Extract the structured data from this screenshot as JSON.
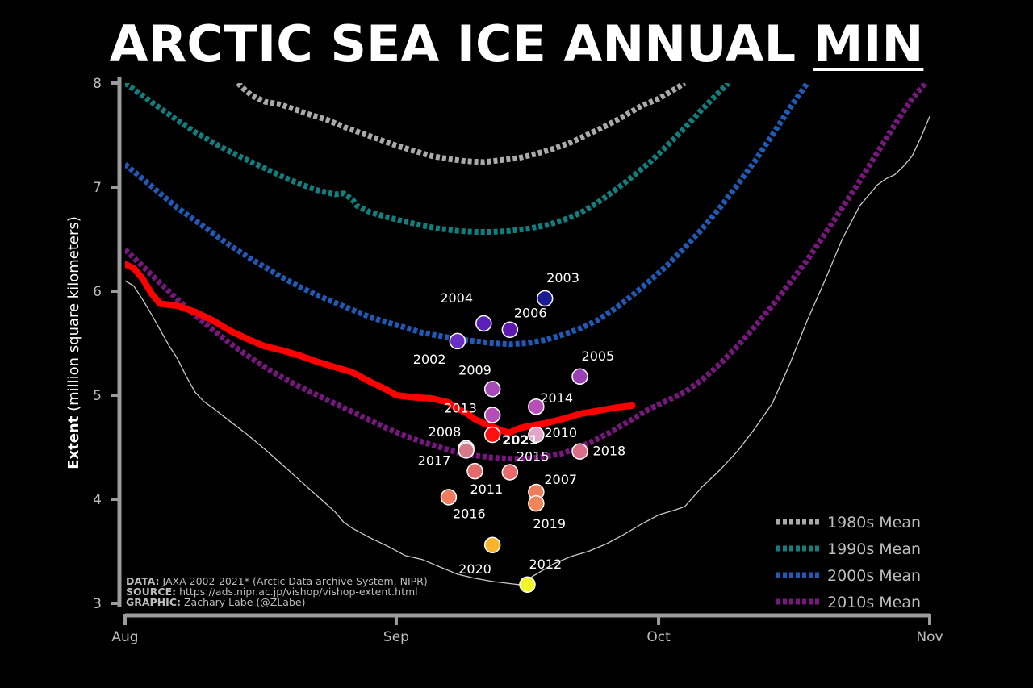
{
  "title": {
    "main": "ARCTIC SEA ICE ANNUAL ",
    "emph": "MIN"
  },
  "chart_data": {
    "type": "line",
    "title": "ARCTIC SEA ICE ANNUAL MIN",
    "ylabel_bold": "Extent",
    "ylabel_rest": " (million square kilometers)",
    "xlabel": "",
    "ylim": [
      3,
      8
    ],
    "xlim": [
      0,
      92
    ],
    "yticks": [
      3,
      4,
      5,
      6,
      7,
      8
    ],
    "xticks": [
      {
        "day": 0,
        "label": "Aug"
      },
      {
        "day": 31,
        "label": "Sep"
      },
      {
        "day": 61,
        "label": "Oct"
      },
      {
        "day": 92,
        "label": "Nov"
      }
    ],
    "legend_position": "bottom-right",
    "grid": false,
    "series": [
      {
        "name": "1980s Mean",
        "color": "#a9a9a9",
        "style": "dashed",
        "points": [
          [
            12.9,
            8.0
          ],
          [
            13.5,
            7.95
          ],
          [
            14.5,
            7.88
          ],
          [
            16,
            7.82
          ],
          [
            17.5,
            7.8
          ],
          [
            19,
            7.76
          ],
          [
            21,
            7.7
          ],
          [
            23,
            7.65
          ],
          [
            25,
            7.58
          ],
          [
            27,
            7.52
          ],
          [
            29,
            7.46
          ],
          [
            31,
            7.4
          ],
          [
            33,
            7.35
          ],
          [
            35,
            7.3
          ],
          [
            37,
            7.27
          ],
          [
            39,
            7.25
          ],
          [
            41,
            7.24
          ],
          [
            43,
            7.26
          ],
          [
            45,
            7.28
          ],
          [
            47,
            7.32
          ],
          [
            49,
            7.37
          ],
          [
            51,
            7.43
          ],
          [
            53,
            7.51
          ],
          [
            55,
            7.59
          ],
          [
            57,
            7.68
          ],
          [
            59,
            7.78
          ],
          [
            61,
            7.85
          ],
          [
            63,
            7.95
          ],
          [
            64,
            8.0
          ]
        ]
      },
      {
        "name": "1990s Mean",
        "color": "#0f7f7f",
        "style": "dashed",
        "points": [
          [
            0,
            8.0
          ],
          [
            2,
            7.88
          ],
          [
            4,
            7.76
          ],
          [
            6,
            7.64
          ],
          [
            8,
            7.53
          ],
          [
            10,
            7.43
          ],
          [
            12,
            7.34
          ],
          [
            14,
            7.26
          ],
          [
            16,
            7.18
          ],
          [
            18,
            7.1
          ],
          [
            20,
            7.03
          ],
          [
            22,
            6.97
          ],
          [
            24,
            6.93
          ],
          [
            25,
            6.94
          ],
          [
            26,
            6.88
          ],
          [
            26.5,
            6.82
          ],
          [
            28,
            6.76
          ],
          [
            30,
            6.71
          ],
          [
            32,
            6.67
          ],
          [
            34,
            6.63
          ],
          [
            36,
            6.6
          ],
          [
            38,
            6.58
          ],
          [
            40,
            6.57
          ],
          [
            42,
            6.57
          ],
          [
            44,
            6.58
          ],
          [
            46,
            6.6
          ],
          [
            48,
            6.63
          ],
          [
            50,
            6.68
          ],
          [
            52,
            6.75
          ],
          [
            54,
            6.85
          ],
          [
            56,
            6.97
          ],
          [
            58,
            7.1
          ],
          [
            60,
            7.24
          ],
          [
            62,
            7.4
          ],
          [
            64,
            7.57
          ],
          [
            66,
            7.75
          ],
          [
            68,
            7.92
          ],
          [
            69,
            8.0
          ]
        ]
      },
      {
        "name": "2000s Mean",
        "color": "#1e5bb8",
        "style": "dashed",
        "points": [
          [
            0,
            7.22
          ],
          [
            2,
            7.08
          ],
          [
            4,
            6.94
          ],
          [
            6,
            6.8
          ],
          [
            8,
            6.68
          ],
          [
            10,
            6.56
          ],
          [
            12,
            6.44
          ],
          [
            14,
            6.33
          ],
          [
            16,
            6.23
          ],
          [
            18,
            6.13
          ],
          [
            20,
            6.04
          ],
          [
            22,
            5.96
          ],
          [
            24,
            5.89
          ],
          [
            26,
            5.82
          ],
          [
            28,
            5.75
          ],
          [
            30,
            5.7
          ],
          [
            32,
            5.65
          ],
          [
            34,
            5.6
          ],
          [
            36,
            5.57
          ],
          [
            38,
            5.54
          ],
          [
            40,
            5.52
          ],
          [
            42,
            5.5
          ],
          [
            44,
            5.49
          ],
          [
            46,
            5.5
          ],
          [
            48,
            5.53
          ],
          [
            50,
            5.58
          ],
          [
            52,
            5.64
          ],
          [
            54,
            5.72
          ],
          [
            56,
            5.83
          ],
          [
            58,
            5.96
          ],
          [
            60,
            6.1
          ],
          [
            62,
            6.25
          ],
          [
            64,
            6.42
          ],
          [
            66,
            6.6
          ],
          [
            68,
            6.8
          ],
          [
            70,
            7.02
          ],
          [
            72,
            7.25
          ],
          [
            74,
            7.5
          ],
          [
            76,
            7.76
          ],
          [
            78,
            8.0
          ]
        ]
      },
      {
        "name": "2010s Mean",
        "color": "#7a1680",
        "style": "dashed",
        "points": [
          [
            0,
            6.4
          ],
          [
            2,
            6.24
          ],
          [
            4,
            6.08
          ],
          [
            6,
            5.92
          ],
          [
            8,
            5.77
          ],
          [
            10,
            5.63
          ],
          [
            12,
            5.5
          ],
          [
            14,
            5.38
          ],
          [
            16,
            5.27
          ],
          [
            18,
            5.17
          ],
          [
            20,
            5.08
          ],
          [
            22,
            5.0
          ],
          [
            24,
            4.92
          ],
          [
            26,
            4.84
          ],
          [
            28,
            4.76
          ],
          [
            30,
            4.68
          ],
          [
            32,
            4.61
          ],
          [
            34,
            4.55
          ],
          [
            36,
            4.5
          ],
          [
            38,
            4.45
          ],
          [
            40,
            4.42
          ],
          [
            42,
            4.4
          ],
          [
            44,
            4.39
          ],
          [
            46,
            4.39
          ],
          [
            48,
            4.41
          ],
          [
            50,
            4.44
          ],
          [
            52,
            4.5
          ],
          [
            54,
            4.58
          ],
          [
            56,
            4.67
          ],
          [
            58,
            4.77
          ],
          [
            60,
            4.87
          ],
          [
            62,
            4.95
          ],
          [
            64,
            5.03
          ],
          [
            66,
            5.15
          ],
          [
            68,
            5.3
          ],
          [
            70,
            5.47
          ],
          [
            72,
            5.66
          ],
          [
            74,
            5.86
          ],
          [
            76,
            6.08
          ],
          [
            78,
            6.3
          ],
          [
            80,
            6.55
          ],
          [
            82,
            6.8
          ],
          [
            84,
            7.06
          ],
          [
            86,
            7.33
          ],
          [
            88,
            7.6
          ],
          [
            90,
            7.85
          ],
          [
            91.5,
            8.0
          ]
        ]
      },
      {
        "name": "2012",
        "color": "#c8c8c8",
        "style": "thin",
        "points": [
          [
            0,
            6.1
          ],
          [
            1,
            6.05
          ],
          [
            2,
            5.92
          ],
          [
            3,
            5.78
          ],
          [
            4,
            5.63
          ],
          [
            5,
            5.48
          ],
          [
            6,
            5.35
          ],
          [
            7,
            5.18
          ],
          [
            8,
            5.03
          ],
          [
            9,
            4.94
          ],
          [
            10,
            4.88
          ],
          [
            12,
            4.75
          ],
          [
            14,
            4.62
          ],
          [
            16,
            4.48
          ],
          [
            18,
            4.33
          ],
          [
            20,
            4.18
          ],
          [
            22,
            4.03
          ],
          [
            24,
            3.88
          ],
          [
            25,
            3.78
          ],
          [
            26,
            3.72
          ],
          [
            28,
            3.63
          ],
          [
            30,
            3.55
          ],
          [
            32,
            3.46
          ],
          [
            34,
            3.42
          ],
          [
            36,
            3.35
          ],
          [
            38,
            3.28
          ],
          [
            40,
            3.24
          ],
          [
            42,
            3.21
          ],
          [
            44,
            3.19
          ],
          [
            45,
            3.18
          ],
          [
            47,
            3.28
          ],
          [
            49,
            3.38
          ],
          [
            51,
            3.45
          ],
          [
            53,
            3.5
          ],
          [
            55,
            3.57
          ],
          [
            57,
            3.66
          ],
          [
            59,
            3.76
          ],
          [
            61,
            3.85
          ],
          [
            63,
            3.9
          ],
          [
            64,
            3.93
          ],
          [
            66,
            4.12
          ],
          [
            68,
            4.28
          ],
          [
            70,
            4.46
          ],
          [
            72,
            4.68
          ],
          [
            74,
            4.92
          ],
          [
            76,
            5.3
          ],
          [
            78,
            5.72
          ],
          [
            80,
            6.1
          ],
          [
            82,
            6.5
          ],
          [
            84,
            6.82
          ],
          [
            86,
            7.02
          ],
          [
            87,
            7.08
          ],
          [
            88,
            7.12
          ],
          [
            89,
            7.2
          ],
          [
            90,
            7.3
          ],
          [
            91,
            7.48
          ],
          [
            92,
            7.68
          ]
        ]
      },
      {
        "name": "2021",
        "color": "#ff0000",
        "style": "thick",
        "points": [
          [
            0,
            6.26
          ],
          [
            1,
            6.22
          ],
          [
            2,
            6.12
          ],
          [
            3,
            5.98
          ],
          [
            4,
            5.88
          ],
          [
            5,
            5.87
          ],
          [
            6,
            5.86
          ],
          [
            8,
            5.8
          ],
          [
            10,
            5.72
          ],
          [
            12,
            5.62
          ],
          [
            14,
            5.54
          ],
          [
            16,
            5.47
          ],
          [
            18,
            5.43
          ],
          [
            20,
            5.38
          ],
          [
            22,
            5.32
          ],
          [
            24,
            5.27
          ],
          [
            26,
            5.22
          ],
          [
            28,
            5.13
          ],
          [
            30,
            5.05
          ],
          [
            31,
            5.0
          ],
          [
            33,
            4.98
          ],
          [
            35,
            4.97
          ],
          [
            36,
            4.95
          ],
          [
            37,
            4.93
          ],
          [
            38,
            4.87
          ],
          [
            39,
            4.83
          ],
          [
            40,
            4.77
          ],
          [
            41,
            4.73
          ],
          [
            42,
            4.7
          ],
          [
            43,
            4.66
          ],
          [
            44,
            4.64
          ],
          [
            45,
            4.68
          ],
          [
            46,
            4.7
          ],
          [
            48,
            4.73
          ],
          [
            50,
            4.77
          ],
          [
            52,
            4.82
          ],
          [
            54,
            4.85
          ],
          [
            56,
            4.88
          ],
          [
            58,
            4.9
          ]
        ]
      }
    ],
    "minima": [
      {
        "year": "2002",
        "day": 38,
        "value": 5.52,
        "color": "#6a2ec4",
        "label_dx": -55,
        "label_dy": 28
      },
      {
        "year": "2003",
        "day": 48,
        "value": 5.93,
        "color": "#1b1a95",
        "label_dx": 2,
        "label_dy": -20
      },
      {
        "year": "2004",
        "day": 41,
        "value": 5.69,
        "color": "#5a1fb8",
        "label_dx": -54,
        "label_dy": -26
      },
      {
        "year": "2005",
        "day": 52,
        "value": 5.18,
        "color": "#9a3fb6",
        "label_dx": 2,
        "label_dy": -20
      },
      {
        "year": "2006",
        "day": 44,
        "value": 5.63,
        "color": "#5e1ab0",
        "label_dx": 5,
        "label_dy": -15
      },
      {
        "year": "2007",
        "day": 47,
        "value": 4.07,
        "color": "#ee7d5e",
        "label_dx": 10,
        "label_dy": -10
      },
      {
        "year": "2008",
        "day": 39,
        "value": 4.49,
        "color": "#c8c0c0",
        "label_dx": -47,
        "label_dy": -15
      },
      {
        "year": "2009",
        "day": 42,
        "value": 5.06,
        "color": "#a74ab8",
        "label_dx": -42,
        "label_dy": -18
      },
      {
        "year": "2010",
        "day": 47,
        "value": 4.62,
        "color": "#e2a7c8",
        "label_dx": 10,
        "label_dy": 3
      },
      {
        "year": "2011",
        "day": 40,
        "value": 4.27,
        "color": "#e46b6b",
        "label_dx": -6,
        "label_dy": 28
      },
      {
        "year": "2012",
        "day": 46,
        "value": 3.18,
        "color": "#f2f527",
        "label_dx": 2,
        "label_dy": -20
      },
      {
        "year": "2013",
        "day": 42,
        "value": 4.81,
        "color": "#b64cb6",
        "label_dx": -60,
        "label_dy": -3
      },
      {
        "year": "2014",
        "day": 47,
        "value": 4.89,
        "color": "#b84fb8",
        "label_dx": 5,
        "label_dy": -5
      },
      {
        "year": "2015",
        "day": 44,
        "value": 4.26,
        "color": "#e86a6a",
        "label_dx": 8,
        "label_dy": -14
      },
      {
        "year": "2016",
        "day": 37,
        "value": 4.02,
        "color": "#ef7c5e",
        "label_dx": 5,
        "label_dy": 26
      },
      {
        "year": "2017",
        "day": 39,
        "value": 4.47,
        "color": "#d5788a",
        "label_dx": -60,
        "label_dy": 18
      },
      {
        "year": "2018",
        "day": 52,
        "value": 4.46,
        "color": "#d76e8a",
        "label_dx": 16,
        "label_dy": 5
      },
      {
        "year": "2019",
        "day": 47,
        "value": 3.96,
        "color": "#ef8558",
        "label_dx": -4,
        "label_dy": 31
      },
      {
        "year": "2020",
        "day": 42,
        "value": 3.56,
        "color": "#f7b52c",
        "label_dx": -42,
        "label_dy": 35
      },
      {
        "year": "2021",
        "day": 42,
        "value": 4.62,
        "color": "#ff1010",
        "label_dx": 12,
        "label_dy": 12,
        "label_color": "#ff1a1a",
        "bold": true
      }
    ]
  },
  "notes": [
    {
      "key": "DATA:",
      "value": " JAXA 2002-2021* (Arctic Data archive System, NIPR)"
    },
    {
      "key": "SOURCE:",
      "value": " https://ads.nipr.ac.jp/vishop/vishop-extent.html"
    },
    {
      "key": "GRAPHIC:",
      "value": " Zachary Labe (@ZLabe)"
    }
  ]
}
